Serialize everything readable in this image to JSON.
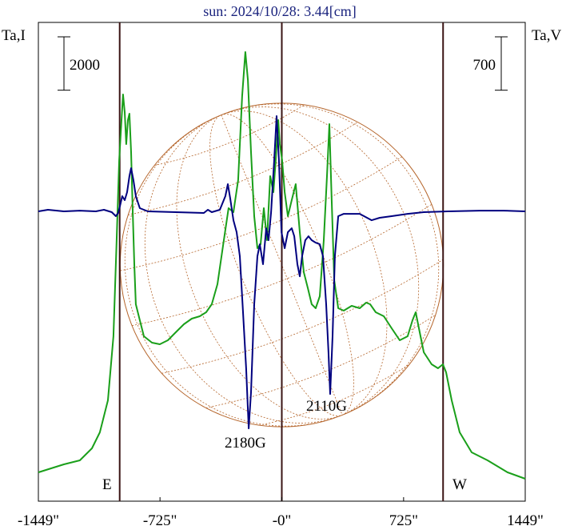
{
  "chart_data": {
    "type": "line",
    "title": "sun: 2024/10/28: 3.44[cm]",
    "ylabel": "Ta,I",
    "y2label": "Ta,V",
    "xlim": [
      -1449,
      1449
    ],
    "xticks": [
      {
        "value": -1449,
        "label": "-1449\""
      },
      {
        "value": -725,
        "label": "-725\""
      },
      {
        "value": 0,
        "label": "-0\""
      },
      {
        "value": 725,
        "label": "725\""
      },
      {
        "value": 1449,
        "label": "1449\""
      }
    ],
    "ylim": [
      0,
      17940
    ],
    "y2lim": [
      -3800,
      2478
    ],
    "vlines": [
      -965,
      0,
      960
    ],
    "disk": {
      "radius": 962,
      "color": "#b5652b"
    },
    "scale_bars": [
      {
        "value": 2000,
        "axis": "y"
      },
      {
        "value": 700,
        "axis": "y2"
      }
    ],
    "annotations": [
      "E",
      "W",
      "2180G",
      "2110G"
    ],
    "series": [
      {
        "name": "I",
        "color": "#1a9f1a",
        "x": [
          -1449,
          -1297,
          -1202,
          -1130,
          -1083,
          -1035,
          -1002,
          -983,
          -968,
          -954,
          -945,
          -935,
          -926,
          -916,
          -907,
          -897,
          -888,
          -878,
          -869,
          -845,
          -821,
          -773,
          -726,
          -678,
          -631,
          -583,
          -536,
          -488,
          -450,
          -417,
          -383,
          -345,
          -317,
          -288,
          -260,
          -236,
          -217,
          -202,
          -183,
          -164,
          -145,
          -126,
          -107,
          -88,
          -69,
          -50,
          -36,
          -21,
          -12,
          2,
          17,
          36,
          59,
          83,
          107,
          131,
          155,
          178,
          202,
          226,
          250,
          269,
          283,
          297,
          312,
          336,
          369,
          416,
          464,
          502,
          526,
          559,
          607,
          654,
          702,
          749,
          778,
          797,
          816,
          845,
          892,
          930,
          959,
          978,
          1011,
          1059,
          1130,
          1225,
          1344,
          1449
        ],
        "values": [
          1080,
          1380,
          1530,
          1980,
          2580,
          3780,
          6180,
          9780,
          12780,
          14280,
          15240,
          14580,
          13380,
          14280,
          14520,
          13080,
          10980,
          8880,
          7380,
          6780,
          6180,
          5940,
          5880,
          6030,
          6330,
          6630,
          6840,
          6930,
          7080,
          7380,
          8130,
          9780,
          10980,
          10830,
          12030,
          15180,
          16830,
          15780,
          13080,
          10680,
          9480,
          9630,
          10980,
          9780,
          12180,
          11580,
          12780,
          14280,
          13380,
          12780,
          11580,
          10680,
          11280,
          11880,
          10080,
          8580,
          7980,
          7380,
          7230,
          7680,
          9780,
          12180,
          14130,
          11280,
          8280,
          7230,
          7140,
          7320,
          7230,
          7440,
          7380,
          7080,
          6930,
          6480,
          6030,
          6180,
          6780,
          7080,
          6480,
          5580,
          5130,
          4980,
          5130,
          4830,
          3780,
          2580,
          1830,
          1530,
          1080,
          840
        ]
      },
      {
        "name": "V",
        "color": "#00007f",
        "axis": "y2",
        "x": [
          -1449,
          -1392,
          -1297,
          -1202,
          -1107,
          -1059,
          -1012,
          -988,
          -974,
          -964,
          -950,
          -935,
          -921,
          -907,
          -897,
          -883,
          -869,
          -845,
          -797,
          -631,
          -464,
          -440,
          -417,
          -369,
          -336,
          -321,
          -307,
          -288,
          -269,
          -250,
          -231,
          -212,
          -197,
          -183,
          -164,
          -145,
          -131,
          -112,
          -93,
          -79,
          -64,
          -45,
          -31,
          -17,
          -2,
          17,
          36,
          59,
          74,
          93,
          107,
          121,
          140,
          159,
          178,
          202,
          226,
          245,
          264,
          278,
          288,
          302,
          316,
          336,
          369,
          464,
          535,
          583,
          654,
          749,
          845,
          988,
          1178,
          1320,
          1449
        ],
        "values": [
          0,
          21,
          0,
          10,
          0,
          21,
          -10,
          -63,
          -21,
          63,
          200,
          147,
          252,
          462,
          567,
          410,
          200,
          42,
          0,
          -10,
          -21,
          21,
          -10,
          21,
          200,
          357,
          168,
          -116,
          -273,
          -588,
          -1323,
          -2058,
          -2846,
          -2373,
          -1218,
          -588,
          -431,
          -693,
          -221,
          -378,
          -10,
          672,
          1250,
          672,
          -273,
          -483,
          -273,
          -221,
          -326,
          -693,
          -851,
          -588,
          -378,
          -326,
          -378,
          -410,
          -431,
          -588,
          -1218,
          -1848,
          -2394,
          -1638,
          -588,
          -63,
          -32,
          -32,
          -116,
          -84,
          -63,
          -32,
          -10,
          0,
          10,
          10,
          0
        ]
      }
    ]
  }
}
